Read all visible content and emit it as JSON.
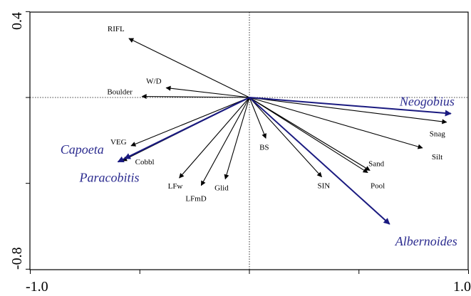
{
  "chart_data": {
    "type": "biplot",
    "title": "",
    "xlabel": "",
    "ylabel": "",
    "xlim": [
      -1.0,
      1.0
    ],
    "ylim": [
      -0.8,
      0.4
    ],
    "x_tick_labels": [
      "-1.0",
      "1.0"
    ],
    "y_tick_labels": [
      "0.4",
      "-0.8"
    ],
    "x_ticks": [
      -1.0,
      -0.5,
      0.0,
      0.5,
      1.0
    ],
    "y_ticks": [
      0.4,
      0.0,
      -0.4,
      -0.8
    ],
    "grid": false,
    "reference_lines": {
      "x": 0,
      "y": 0,
      "style": "dotted"
    },
    "colors": {
      "environment": "#000000",
      "species": "#1a1a80"
    },
    "environmental_vectors": [
      {
        "name": "RIFL",
        "x": -0.55,
        "y": 0.275
      },
      {
        "name": "W/D",
        "x": -0.38,
        "y": 0.045
      },
      {
        "name": "Boulder",
        "x": -0.49,
        "y": 0.005
      },
      {
        "name": "VEG",
        "x": -0.54,
        "y": -0.225
      },
      {
        "name": "Cobbl",
        "x": -0.58,
        "y": -0.295
      },
      {
        "name": "LFw",
        "x": -0.32,
        "y": -0.375
      },
      {
        "name": "LFmD",
        "x": -0.22,
        "y": -0.41
      },
      {
        "name": "Glid",
        "x": -0.11,
        "y": -0.38
      },
      {
        "name": "BS",
        "x": 0.075,
        "y": -0.19
      },
      {
        "name": "SIN",
        "x": 0.33,
        "y": -0.37
      },
      {
        "name": "Sand",
        "x": 0.55,
        "y": -0.34
      },
      {
        "name": "Pool",
        "x": 0.54,
        "y": -0.35
      },
      {
        "name": "Silt",
        "x": 0.79,
        "y": -0.235
      },
      {
        "name": "Snag",
        "x": 0.9,
        "y": -0.115
      }
    ],
    "species_vectors": [
      {
        "name": "Neogobius",
        "x": 0.92,
        "y": -0.075
      },
      {
        "name": "Capoeta",
        "x": -0.57,
        "y": -0.285
      },
      {
        "name": "Paracobitis",
        "x": -0.6,
        "y": -0.3
      },
      {
        "name": "Albernoides",
        "x": 0.64,
        "y": -0.59
      }
    ]
  }
}
